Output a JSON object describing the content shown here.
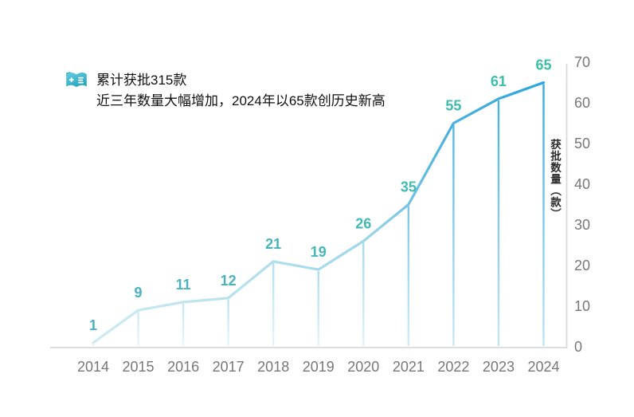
{
  "annotation": {
    "icon": "book-plus-icon",
    "line1": "累计获批315款",
    "line2": "近三年数量大幅增加，2024年以65款创历史新高"
  },
  "chart_data": {
    "type": "line",
    "categories": [
      "2014",
      "2015",
      "2016",
      "2017",
      "2018",
      "2019",
      "2020",
      "2021",
      "2022",
      "2023",
      "2024"
    ],
    "values": [
      1,
      9,
      11,
      12,
      21,
      19,
      26,
      35,
      55,
      61,
      65
    ],
    "series_name": "获批数量",
    "cumulative_total": 315,
    "data_labels_shown": true,
    "xlabel": "",
    "ylabel": "获批数量（款）",
    "y_axis": {
      "title": "获批数量（款）",
      "ticks": [
        0,
        10,
        20,
        30,
        40,
        50,
        60,
        70
      ],
      "range": [
        0,
        70
      ],
      "side": "right",
      "grid": false
    },
    "legend": "none",
    "style": {
      "line_gradient": [
        {
          "pos": 0,
          "color": "#CDEAF3"
        },
        {
          "pos": 0.35,
          "color": "#B4E0EE"
        },
        {
          "pos": 0.6,
          "color": "#9FD7EA"
        },
        {
          "pos": 0.78,
          "color": "#4FB2DF"
        },
        {
          "pos": 1,
          "color": "#2CA5DE"
        }
      ],
      "label_color_start": "#4EAEC6",
      "label_color_end": "#3AC0A9",
      "axis_line": "#D9D9D9",
      "tick_text": "#777777",
      "axis_title_text": "#2B2B2B",
      "annotation_text": "#111111",
      "icon_color_top": "#5FCADF",
      "icon_color_bottom": "#29A9BE"
    }
  }
}
